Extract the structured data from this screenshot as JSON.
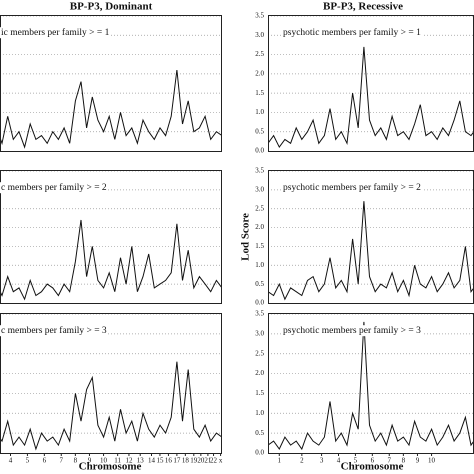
{
  "chart_data": [
    {
      "type": "line",
      "title": "BP-P3, Dominant",
      "annotation": "ic members per family > = 1",
      "x": [
        0,
        2,
        4,
        6,
        8,
        10,
        12,
        14,
        16,
        18,
        20,
        22,
        24,
        26,
        28,
        30,
        32,
        34,
        36,
        38,
        40,
        42,
        44,
        46,
        48,
        50,
        52,
        54,
        56,
        58,
        60,
        62,
        64,
        66,
        68,
        70,
        72,
        74,
        76,
        78,
        80,
        82,
        84,
        86,
        88,
        90,
        92,
        94,
        96,
        98,
        100
      ],
      "values": [
        0.3,
        0.5,
        0.2,
        0.6,
        0.1,
        0.4,
        0.8,
        0.2,
        0.5,
        0.3,
        0.6,
        0.2,
        0.9,
        0.3,
        0.5,
        0.1,
        0.7,
        0.3,
        0.4,
        0.2,
        0.5,
        0.3,
        0.6,
        0.2,
        1.3,
        1.8,
        0.6,
        1.4,
        0.8,
        0.5,
        0.9,
        0.3,
        1.0,
        0.4,
        0.6,
        0.2,
        0.8,
        0.5,
        0.3,
        0.6,
        0.4,
        0.9,
        2.1,
        0.7,
        1.3,
        0.5,
        0.6,
        0.9,
        0.3,
        0.5,
        0.4
      ],
      "color": "#111111",
      "xlim": [
        0,
        100
      ],
      "ylim": [
        0,
        3.5
      ],
      "yticks": [
        0,
        0.5,
        1,
        1.5,
        2,
        2.5,
        3,
        3.5
      ],
      "grid": true
    },
    {
      "type": "line",
      "annotation": "c members per family > = 2",
      "x": [
        0,
        2,
        4,
        6,
        8,
        10,
        12,
        14,
        16,
        18,
        20,
        22,
        24,
        26,
        28,
        30,
        32,
        34,
        36,
        38,
        40,
        42,
        44,
        46,
        48,
        50,
        52,
        54,
        56,
        58,
        60,
        62,
        64,
        66,
        68,
        70,
        72,
        74,
        76,
        78,
        80,
        82,
        84,
        86,
        88,
        90,
        92,
        94,
        96,
        98,
        100
      ],
      "values": [
        0.2,
        0.4,
        0.1,
        0.5,
        0.3,
        0.2,
        0.6,
        0.1,
        0.4,
        0.2,
        0.5,
        0.2,
        0.7,
        0.3,
        0.4,
        0.1,
        0.6,
        0.2,
        0.3,
        0.5,
        0.4,
        0.2,
        0.5,
        0.3,
        1.1,
        2.2,
        0.7,
        1.5,
        0.6,
        0.4,
        0.8,
        0.3,
        1.2,
        0.5,
        1.5,
        0.3,
        0.7,
        1.3,
        0.4,
        0.5,
        0.6,
        0.8,
        2.1,
        0.6,
        1.4,
        0.4,
        0.7,
        0.5,
        0.3,
        0.6,
        0.4
      ],
      "color": "#111111",
      "xlim": [
        0,
        100
      ],
      "ylim": [
        0,
        3.5
      ],
      "yticks": [
        0,
        0.5,
        1,
        1.5,
        2,
        2.5,
        3,
        3.5
      ],
      "grid": true
    },
    {
      "type": "line",
      "annotation": "c members per family > = 3",
      "x_label": "Chromosome",
      "x": [
        0,
        2,
        4,
        6,
        8,
        10,
        12,
        14,
        16,
        18,
        20,
        22,
        24,
        26,
        28,
        30,
        32,
        34,
        36,
        38,
        40,
        42,
        44,
        46,
        48,
        50,
        52,
        54,
        56,
        58,
        60,
        62,
        64,
        66,
        68,
        70,
        72,
        74,
        76,
        78,
        80,
        82,
        84,
        86,
        88,
        90,
        92,
        94,
        96,
        98,
        100
      ],
      "values": [
        0.3,
        0.2,
        0.5,
        0.1,
        0.4,
        0.3,
        0.6,
        0.2,
        0.3,
        0.1,
        0.5,
        0.3,
        0.8,
        0.2,
        0.4,
        0.2,
        0.6,
        0.1,
        0.5,
        0.3,
        0.4,
        0.2,
        0.6,
        0.3,
        1.5,
        0.8,
        1.6,
        1.9,
        0.7,
        0.4,
        0.9,
        0.3,
        1.1,
        0.5,
        0.8,
        0.3,
        1.0,
        0.6,
        0.4,
        0.7,
        0.5,
        0.9,
        2.3,
        0.8,
        2.1,
        0.6,
        0.4,
        0.7,
        0.3,
        0.5,
        0.4
      ],
      "color": "#111111",
      "xlim": [
        0,
        100
      ],
      "ylim": [
        0,
        3.5
      ],
      "yticks": [
        0,
        0.5,
        1,
        1.5,
        2,
        2.5,
        3,
        3.5
      ],
      "grid": true,
      "xticks": [
        {
          "value": 25,
          "label": "4"
        },
        {
          "value": 31,
          "label": "5"
        },
        {
          "value": 37,
          "label": "6"
        },
        {
          "value": 43,
          "label": "7"
        },
        {
          "value": 48,
          "label": "8"
        },
        {
          "value": 53,
          "label": "9"
        },
        {
          "value": 58,
          "label": "10"
        },
        {
          "value": 63,
          "label": "11"
        },
        {
          "value": 67,
          "label": "12"
        },
        {
          "value": 71,
          "label": "13"
        },
        {
          "value": 75,
          "label": "14"
        },
        {
          "value": 78,
          "label": "15"
        },
        {
          "value": 81,
          "label": "16"
        },
        {
          "value": 84,
          "label": "17"
        },
        {
          "value": 87,
          "label": "18"
        },
        {
          "value": 90,
          "label": "19"
        },
        {
          "value": 92.5,
          "label": "20"
        },
        {
          "value": 95,
          "label": "21"
        },
        {
          "value": 97,
          "label": "22"
        },
        {
          "value": 99.5,
          "label": "x"
        }
      ]
    },
    {
      "type": "line",
      "title": "BP-P3, Recessive",
      "annotation": "psychotic members per family > = 1",
      "x": [
        0,
        2,
        4,
        6,
        8,
        10,
        12,
        14,
        16,
        18,
        20,
        22,
        24,
        26,
        28,
        30,
        32,
        34,
        36,
        38,
        40,
        42,
        44,
        46,
        48,
        50,
        52,
        54,
        56,
        58,
        60,
        62,
        64,
        66,
        68,
        70,
        72,
        74,
        76,
        78,
        80,
        82,
        84,
        86,
        88,
        90,
        92,
        94,
        96,
        98,
        100
      ],
      "values": [
        0.2,
        0.4,
        0.1,
        0.3,
        0.2,
        0.6,
        0.3,
        0.5,
        0.8,
        0.2,
        0.4,
        1.1,
        0.3,
        0.5,
        0.2,
        1.5,
        0.6,
        2.7,
        0.8,
        0.4,
        0.6,
        0.3,
        0.9,
        0.4,
        0.5,
        0.3,
        0.7,
        1.2,
        0.4,
        0.5,
        0.3,
        0.6,
        0.4,
        0.8,
        1.3,
        0.5,
        0.4,
        0.6,
        0.3,
        0.5,
        0.4,
        0.6,
        0.3,
        0.5,
        0.2,
        0.4,
        0.6,
        0.3,
        0.5,
        0.2,
        0.4
      ],
      "color": "#111111",
      "xlim": [
        0,
        100
      ],
      "ylim": [
        0,
        3.5
      ],
      "yticks": [
        {
          "value": 0,
          "label": "0.0"
        },
        {
          "value": 0.5,
          "label": "0.5"
        },
        {
          "value": 1,
          "label": "1.0"
        },
        {
          "value": 1.5,
          "label": "1.5"
        },
        {
          "value": 2,
          "label": "2.0"
        },
        {
          "value": 2.5,
          "label": "2.5"
        },
        {
          "value": 3,
          "label": "3.0"
        },
        {
          "value": 3.5,
          "label": "3.5"
        }
      ],
      "grid": true
    },
    {
      "type": "line",
      "annotation": "psychotic members per family > = 2",
      "y_label": "Lod Score",
      "x": [
        0,
        2,
        4,
        6,
        8,
        10,
        12,
        14,
        16,
        18,
        20,
        22,
        24,
        26,
        28,
        30,
        32,
        34,
        36,
        38,
        40,
        42,
        44,
        46,
        48,
        50,
        52,
        54,
        56,
        58,
        60,
        62,
        64,
        66,
        68,
        70,
        72,
        74,
        76,
        78,
        80,
        82,
        84,
        86,
        88,
        90,
        92,
        94,
        96,
        98,
        100
      ],
      "values": [
        0.3,
        0.2,
        0.5,
        0.1,
        0.4,
        0.3,
        0.2,
        0.6,
        0.7,
        0.3,
        0.5,
        1.2,
        0.4,
        0.6,
        0.3,
        1.7,
        0.5,
        2.7,
        0.7,
        0.3,
        0.5,
        0.4,
        0.8,
        0.3,
        0.6,
        0.2,
        1.0,
        0.5,
        0.4,
        0.7,
        0.3,
        0.5,
        0.8,
        0.4,
        0.6,
        1.5,
        0.3,
        0.5,
        0.4,
        0.6,
        0.3,
        0.5,
        0.2,
        0.4,
        0.6,
        0.3,
        0.5,
        0.2,
        0.4,
        0.3,
        0.5
      ],
      "color": "#111111",
      "xlim": [
        0,
        100
      ],
      "ylim": [
        0,
        3.5
      ],
      "yticks": [
        {
          "value": 0,
          "label": "0.0"
        },
        {
          "value": 0.5,
          "label": "0.5"
        },
        {
          "value": 1,
          "label": "1.0"
        },
        {
          "value": 1.5,
          "label": "1.5"
        },
        {
          "value": 2,
          "label": "2.0"
        },
        {
          "value": 2.5,
          "label": "2.5"
        },
        {
          "value": 3,
          "label": "3.0"
        },
        {
          "value": 3.5,
          "label": "3.5"
        }
      ],
      "grid": true
    },
    {
      "type": "line",
      "annotation": "psychotic members per family > = 3",
      "x_label": "Chromosome",
      "x": [
        0,
        2,
        4,
        6,
        8,
        10,
        12,
        14,
        16,
        18,
        20,
        22,
        24,
        26,
        28,
        30,
        32,
        34,
        36,
        38,
        40,
        42,
        44,
        46,
        48,
        50,
        52,
        54,
        56,
        58,
        60,
        62,
        64,
        66,
        68,
        70,
        72,
        74,
        76,
        78,
        80,
        82,
        84,
        86,
        88,
        90,
        92,
        94,
        96,
        98,
        100
      ],
      "values": [
        0.2,
        0.3,
        0.1,
        0.4,
        0.2,
        0.3,
        0.1,
        0.5,
        0.3,
        0.2,
        0.4,
        1.3,
        0.3,
        0.5,
        0.2,
        1.0,
        0.6,
        3.3,
        0.7,
        0.3,
        0.5,
        0.2,
        0.7,
        0.3,
        0.4,
        0.2,
        0.8,
        0.4,
        0.3,
        0.6,
        0.2,
        0.4,
        0.7,
        0.3,
        0.5,
        0.9,
        0.2,
        0.4,
        0.3,
        0.5,
        0.2,
        0.4,
        0.1,
        0.3,
        0.5,
        0.2,
        0.4,
        0.1,
        0.3,
        0.2,
        0.4
      ],
      "color": "#111111",
      "xlim": [
        0,
        100
      ],
      "ylim": [
        0,
        3.5
      ],
      "yticks": [
        {
          "value": 0,
          "label": "0.0"
        },
        {
          "value": 0.5,
          "label": "0.5"
        },
        {
          "value": 1,
          "label": "1.0"
        },
        {
          "value": 1.5,
          "label": "1.5"
        },
        {
          "value": 2,
          "label": "2.0"
        },
        {
          "value": 2.5,
          "label": "2.5"
        },
        {
          "value": 3,
          "label": "3.0"
        },
        {
          "value": 3.5,
          "label": "3.5"
        }
      ],
      "grid": true,
      "xticks": [
        {
          "value": 4,
          "label": "1"
        },
        {
          "value": 12,
          "label": "2"
        },
        {
          "value": 19,
          "label": "3"
        },
        {
          "value": 25,
          "label": "4"
        },
        {
          "value": 31,
          "label": "5"
        },
        {
          "value": 37,
          "label": "6"
        },
        {
          "value": 43,
          "label": "7"
        },
        {
          "value": 48,
          "label": "8"
        },
        {
          "value": 53,
          "label": "9"
        },
        {
          "value": 58,
          "label": "10"
        }
      ]
    }
  ]
}
